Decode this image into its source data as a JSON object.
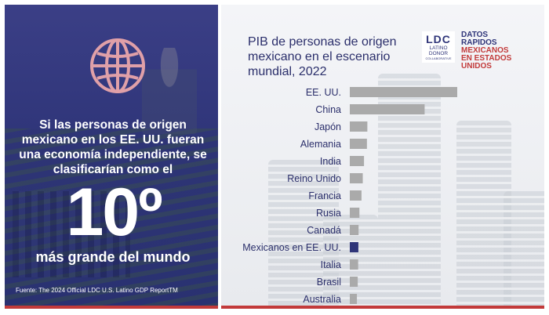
{
  "infographic": {
    "headline": "Si las personas de origen mexicano en los EE. UU. fueran una economía independiente, se clasificarían como el",
    "rank": "10º",
    "rank_subtitle": "más grande del mundo",
    "source": "Fuente: The 2024 Official LDC U.S. Latino GDP ReportTM"
  },
  "brand": {
    "logo_main": "LDC",
    "logo_sub_1": "LATINO",
    "logo_sub_2": "DONOR",
    "logo_sub_3": "COLLABORATIVE",
    "line1": "DATOS",
    "line2": "RAPIDOS",
    "line3": "MEXICANOS",
    "line4": "EN ESTADOS",
    "line5": "UNIDOS"
  },
  "colors": {
    "bar": "#aaaaaa",
    "highlight": "#2f3579",
    "accent_red": "#c23a3a",
    "label": "#2b2f6b"
  },
  "chart_data": {
    "type": "bar",
    "orientation": "horizontal",
    "title": "PIB de personas de origen mexicano en el escenario mundial, 2022",
    "categories": [
      "EE. UU.",
      "China",
      "Japón",
      "Alemania",
      "India",
      "Reino Unido",
      "Francia",
      "Rusia",
      "Canadá",
      "Mexicanos en EE. UU.",
      "Italia",
      "Brasil",
      "Australia"
    ],
    "values": [
      25.7,
      17.9,
      4.2,
      4.1,
      3.4,
      3.1,
      2.8,
      2.3,
      2.1,
      2.05,
      2.0,
      1.9,
      1.7
    ],
    "highlight_category": "Mexicanos en EE. UU.",
    "xlim": [
      0,
      25.7
    ]
  }
}
